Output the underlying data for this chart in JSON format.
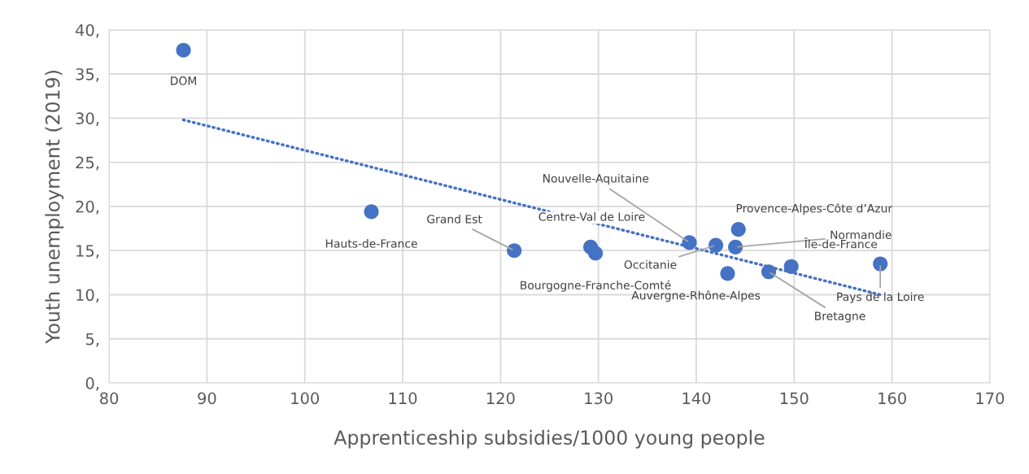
{
  "chart_data": {
    "type": "scatter",
    "xlabel": "Apprenticeship subsidies/1000 young people",
    "ylabel": "Youth unemployment (2019)",
    "xlim": [
      80,
      170
    ],
    "xticks": [
      80,
      90,
      100,
      110,
      120,
      130,
      140,
      150,
      160,
      170
    ],
    "ylim": [
      0,
      40
    ],
    "yticks": [
      {
        "value": 0,
        "label": "0,"
      },
      {
        "value": 5,
        "label": "5,"
      },
      {
        "value": 10,
        "label": "10,"
      },
      {
        "value": 15,
        "label": "15,"
      },
      {
        "value": 20,
        "label": "20,"
      },
      {
        "value": 25,
        "label": "25,"
      },
      {
        "value": 30,
        "label": "30,"
      },
      {
        "value": 35,
        "label": "35,"
      },
      {
        "value": 40,
        "label": "40,"
      }
    ],
    "grid": true,
    "marker": "circle",
    "series": [
      {
        "color": "#4472c4",
        "x": [
          87.6,
          106.8,
          121.4,
          129.2,
          129.7,
          139.3,
          142.0,
          144.3,
          144.0,
          149.7,
          143.2,
          147.4,
          158.8
        ],
        "values": [
          37.7,
          19.4,
          15.0,
          15.4,
          14.7,
          15.9,
          15.6,
          17.4,
          15.4,
          13.2,
          12.4,
          12.6,
          13.5
        ]
      },
      {
        "type": "line",
        "marker": "none",
        "color": "#4472c4",
        "line_style": "dotted",
        "x": [
          87.6,
          158.8
        ],
        "values": [
          29.8,
          10.0
        ]
      }
    ],
    "annotations": [
      {
        "text": "DOM",
        "x": 87.6,
        "y": 37.7
      },
      {
        "text": "Hauts-de-France",
        "x": 106.8,
        "y": 19.4
      },
      {
        "text": "Grand Est",
        "x": 121.4,
        "y": 15.0
      },
      {
        "text": "Centre-Val de Loire",
        "x": 129.2,
        "y": 15.4
      },
      {
        "text": "Bourgogne-Franche-Comté",
        "x": 129.7,
        "y": 14.7
      },
      {
        "text": "Nouvelle-Aquitaine",
        "x": 139.3,
        "y": 15.9
      },
      {
        "text": "Occitanie",
        "x": 142.0,
        "y": 15.6
      },
      {
        "text": "Provence-Alpes-Côte d’Azur",
        "x": 144.3,
        "y": 17.4
      },
      {
        "text": "Normandie",
        "x": 144.0,
        "y": 15.4
      },
      {
        "text": "Île-de-France",
        "x": 149.7,
        "y": 13.2
      },
      {
        "text": "Auvergne-Rhône-Alpes",
        "x": 143.2,
        "y": 12.4
      },
      {
        "text": "Bretagne",
        "x": 147.4,
        "y": 12.6
      },
      {
        "text": "Pays de la Loire",
        "x": 158.8,
        "y": 13.5
      }
    ]
  }
}
